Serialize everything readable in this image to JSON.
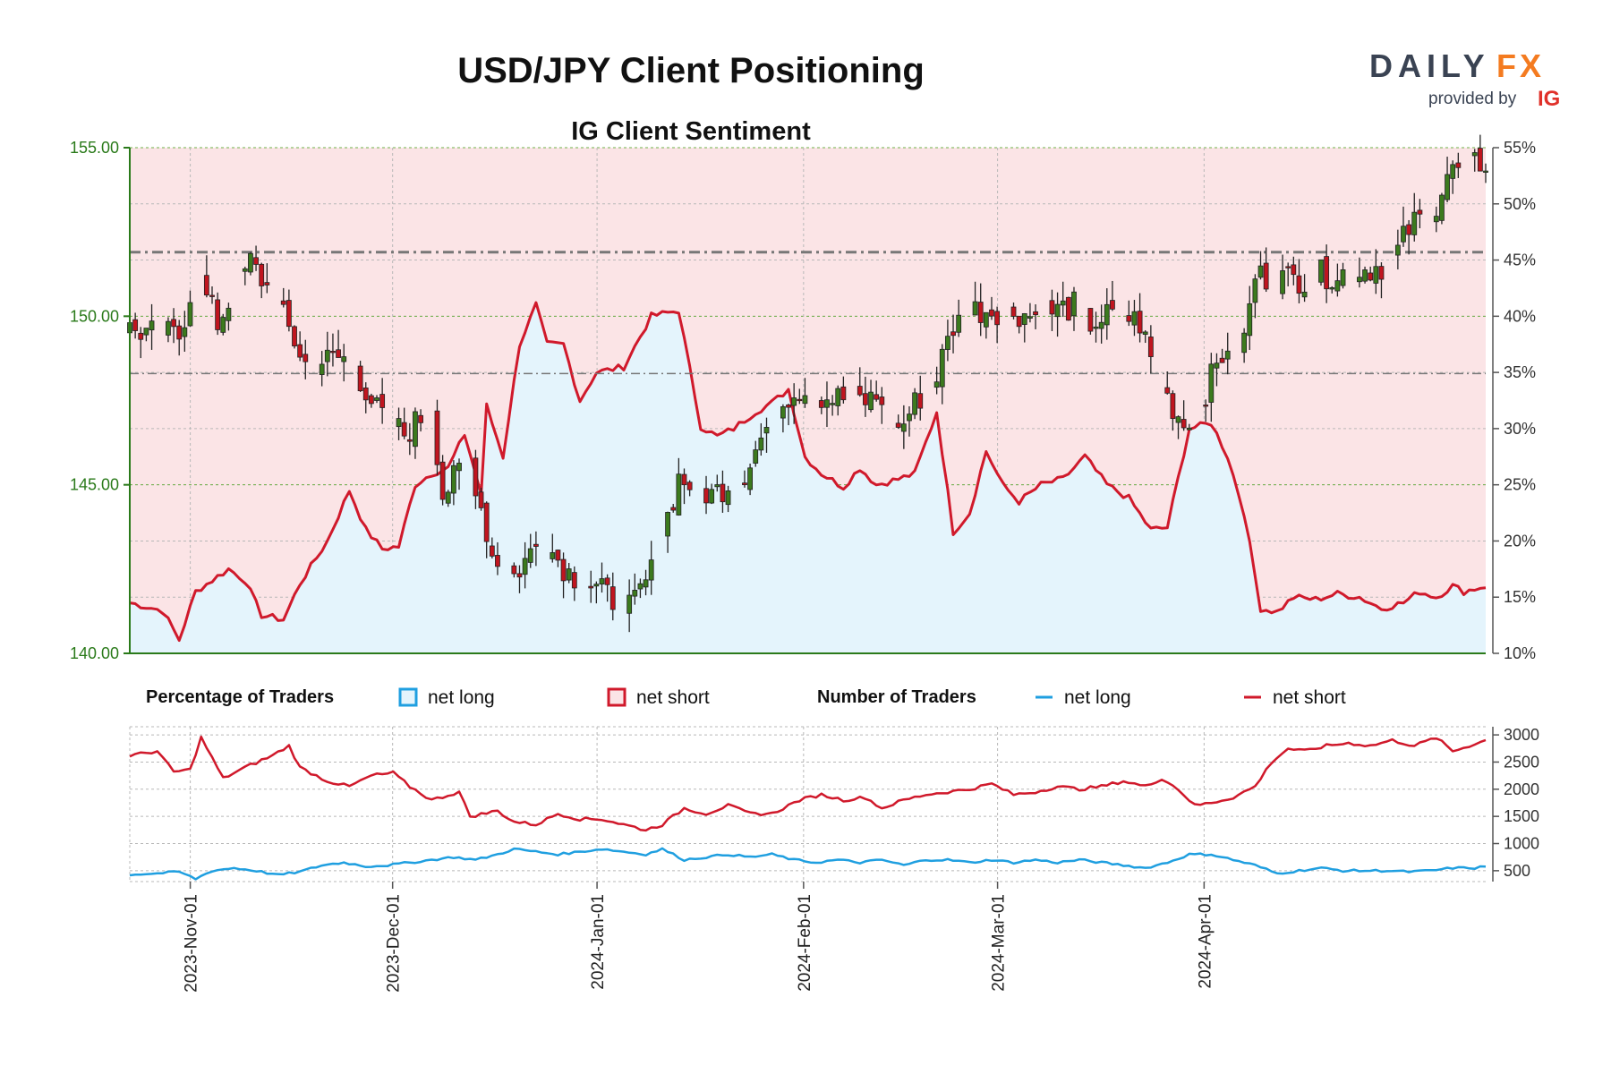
{
  "header": {
    "title": "USD/JPY Client Positioning",
    "subtitle": "IG Client Sentiment",
    "logo": {
      "text_main": "DAILY",
      "text_accent": "FX",
      "provided_by": "provided by",
      "brand": "IG"
    }
  },
  "legend": {
    "pct_heading": "Percentage of Traders",
    "pct_long": "net long",
    "pct_short": "net short",
    "num_heading": "Number of Traders",
    "num_long": "net long",
    "num_short": "net short"
  },
  "colors": {
    "long": "#1f9fe0",
    "short": "#d0192b",
    "long_fill": "#e4f4fc",
    "short_fill": "#fbe4e6",
    "candle_up": "#3c7a1e",
    "candle_down": "#c0151f",
    "price_axis": "#2a7a1a",
    "resistance": "#777777"
  },
  "chart_data": [
    {
      "type": "candlestick",
      "name": "USD/JPY price",
      "left_axis": {
        "ylim": [
          140,
          155
        ],
        "ticks": [
          "140.00",
          "145.00",
          "150.00",
          "155.00"
        ]
      },
      "right_axis": {
        "ylim": [
          10,
          55
        ],
        "ticks": [
          "10%",
          "15%",
          "20%",
          "25%",
          "30%",
          "35%",
          "40%",
          "45%",
          "50%",
          "55%"
        ]
      },
      "x_ticks": [
        "2023-Nov-01",
        "2023-Dec-01",
        "2024-Jan-01",
        "2024-Feb-01",
        "2024-Mar-01",
        "2024-Apr-01"
      ],
      "horizontal_levels": [
        151.9,
        148.3
      ],
      "price_keypoints": [
        [
          0,
          149.6
        ],
        [
          9,
          149.4
        ],
        [
          12,
          151.3
        ],
        [
          16,
          149.8
        ],
        [
          22,
          151.6
        ],
        [
          26,
          150.6
        ],
        [
          32,
          148.6
        ],
        [
          40,
          148.8
        ],
        [
          45,
          147.2
        ],
        [
          50,
          146.5
        ],
        [
          55,
          147.3
        ],
        [
          57,
          144.7
        ],
        [
          62,
          145.8
        ],
        [
          66,
          142.9
        ],
        [
          70,
          142.3
        ],
        [
          75,
          143.4
        ],
        [
          80,
          142.4
        ],
        [
          84,
          142.0
        ],
        [
          88,
          141.6
        ],
        [
          90,
          141.0
        ],
        [
          95,
          142.4
        ],
        [
          100,
          145.2
        ],
        [
          106,
          144.7
        ],
        [
          112,
          145.4
        ],
        [
          117,
          147.0
        ],
        [
          121,
          147.9
        ],
        [
          127,
          147.6
        ],
        [
          134,
          147.5
        ],
        [
          137,
          147.6
        ],
        [
          140,
          146.6
        ],
        [
          143,
          147.4
        ],
        [
          147,
          148.3
        ],
        [
          150,
          149.7
        ],
        [
          154,
          150.2
        ],
        [
          160,
          150.2
        ],
        [
          165,
          150.0
        ],
        [
          172,
          150.3
        ],
        [
          175,
          149.8
        ],
        [
          180,
          150.1
        ],
        [
          184,
          149.8
        ],
        [
          187,
          148.2
        ],
        [
          189,
          147.6
        ],
        [
          192,
          146.8
        ],
        [
          196,
          147.8
        ],
        [
          200,
          149.2
        ],
        [
          203,
          149.3
        ],
        [
          205,
          151.2
        ],
        [
          212,
          151.1
        ],
        [
          220,
          151.3
        ],
        [
          225,
          151.4
        ],
        [
          230,
          151.6
        ],
        [
          233,
          152.6
        ],
        [
          238,
          153.3
        ],
        [
          240,
          154.2
        ],
        [
          243,
          154.4
        ],
        [
          247,
          154.6
        ]
      ],
      "pct_long_keypoints": [
        [
          0,
          14.5
        ],
        [
          6,
          13.8
        ],
        [
          9,
          11.2
        ],
        [
          12,
          15.5
        ],
        [
          15,
          16.5
        ],
        [
          18,
          17.5
        ],
        [
          21,
          16.5
        ],
        [
          24,
          13.4
        ],
        [
          28,
          13.0
        ],
        [
          31,
          16.2
        ],
        [
          36,
          20.0
        ],
        [
          40,
          24.5
        ],
        [
          43,
          21.0
        ],
        [
          46,
          19.3
        ],
        [
          49,
          19.5
        ],
        [
          52,
          25.0
        ],
        [
          55,
          26.0
        ],
        [
          58,
          26.5
        ],
        [
          61,
          29.5
        ],
        [
          64,
          24.2
        ],
        [
          65,
          32.0
        ],
        [
          68,
          27.5
        ],
        [
          71,
          37.5
        ],
        [
          74,
          41.0
        ],
        [
          76,
          37.5
        ],
        [
          79,
          37.5
        ],
        [
          82,
          32.5
        ],
        [
          85,
          35.0
        ],
        [
          90,
          35.5
        ],
        [
          95,
          40.0
        ],
        [
          100,
          40.5
        ],
        [
          104,
          30.2
        ],
        [
          107,
          29.3
        ],
        [
          110,
          30.0
        ],
        [
          114,
          31.5
        ],
        [
          117,
          32.3
        ],
        [
          120,
          33.5
        ],
        [
          123,
          27.5
        ],
        [
          126,
          26.0
        ],
        [
          130,
          24.8
        ],
        [
          133,
          26.5
        ],
        [
          136,
          25.0
        ],
        [
          140,
          25.5
        ],
        [
          143,
          26.0
        ],
        [
          147,
          31.5
        ],
        [
          150,
          20.8
        ],
        [
          153,
          22.5
        ],
        [
          156,
          28.0
        ],
        [
          159,
          25.0
        ],
        [
          162,
          23.5
        ],
        [
          166,
          25.0
        ],
        [
          170,
          25.5
        ],
        [
          174,
          27.5
        ],
        [
          178,
          25.0
        ],
        [
          182,
          23.8
        ],
        [
          186,
          21.0
        ],
        [
          189,
          21.2
        ],
        [
          193,
          30.0
        ],
        [
          197,
          30.5
        ],
        [
          200,
          27.5
        ],
        [
          203,
          22.5
        ],
        [
          206,
          14.0
        ],
        [
          209,
          13.7
        ],
        [
          212,
          15.0
        ],
        [
          216,
          14.8
        ],
        [
          220,
          15.3
        ],
        [
          224,
          15.0
        ],
        [
          228,
          14.0
        ],
        [
          232,
          14.5
        ],
        [
          235,
          15.5
        ],
        [
          238,
          15.0
        ],
        [
          241,
          16.0
        ],
        [
          243,
          15.5
        ],
        [
          247,
          16.0
        ]
      ],
      "resistance_level": 151.9,
      "mid_level": 148.3
    },
    {
      "type": "line",
      "name": "Number of Traders",
      "y_axis": {
        "ylim": [
          300,
          3150
        ],
        "ticks": [
          "500",
          "1000",
          "1500",
          "2000",
          "2500",
          "3000"
        ]
      },
      "short_keypoints": [
        [
          0,
          2620
        ],
        [
          5,
          2700
        ],
        [
          8,
          2320
        ],
        [
          11,
          2360
        ],
        [
          13,
          2950
        ],
        [
          17,
          2200
        ],
        [
          21,
          2400
        ],
        [
          26,
          2620
        ],
        [
          29,
          2800
        ],
        [
          31,
          2400
        ],
        [
          36,
          2150
        ],
        [
          40,
          2050
        ],
        [
          44,
          2250
        ],
        [
          48,
          2300
        ],
        [
          51,
          2050
        ],
        [
          55,
          1800
        ],
        [
          60,
          1950
        ],
        [
          62,
          1500
        ],
        [
          67,
          1600
        ],
        [
          70,
          1400
        ],
        [
          74,
          1350
        ],
        [
          78,
          1550
        ],
        [
          82,
          1450
        ],
        [
          86,
          1450
        ],
        [
          90,
          1350
        ],
        [
          94,
          1250
        ],
        [
          97,
          1350
        ],
        [
          101,
          1650
        ],
        [
          105,
          1550
        ],
        [
          109,
          1700
        ],
        [
          113,
          1550
        ],
        [
          117,
          1550
        ],
        [
          122,
          1800
        ],
        [
          126,
          1900
        ],
        [
          130,
          1800
        ],
        [
          134,
          1850
        ],
        [
          137,
          1650
        ],
        [
          141,
          1800
        ],
        [
          145,
          1900
        ],
        [
          149,
          1950
        ],
        [
          153,
          2000
        ],
        [
          157,
          2100
        ],
        [
          161,
          1900
        ],
        [
          165,
          1950
        ],
        [
          169,
          2050
        ],
        [
          173,
          2000
        ],
        [
          177,
          2050
        ],
        [
          181,
          2150
        ],
        [
          185,
          2050
        ],
        [
          188,
          2200
        ],
        [
          191,
          2000
        ],
        [
          194,
          1700
        ],
        [
          197,
          1750
        ],
        [
          201,
          1850
        ],
        [
          205,
          2050
        ],
        [
          208,
          2500
        ],
        [
          211,
          2750
        ],
        [
          214,
          2700
        ],
        [
          218,
          2800
        ],
        [
          222,
          2850
        ],
        [
          226,
          2800
        ],
        [
          230,
          2900
        ],
        [
          234,
          2800
        ],
        [
          238,
          2950
        ],
        [
          241,
          2700
        ],
        [
          244,
          2800
        ],
        [
          247,
          2900
        ]
      ],
      "long_keypoints": [
        [
          0,
          430
        ],
        [
          5,
          450
        ],
        [
          9,
          480
        ],
        [
          12,
          350
        ],
        [
          15,
          500
        ],
        [
          19,
          550
        ],
        [
          23,
          500
        ],
        [
          27,
          420
        ],
        [
          31,
          480
        ],
        [
          35,
          600
        ],
        [
          39,
          650
        ],
        [
          43,
          580
        ],
        [
          47,
          600
        ],
        [
          51,
          650
        ],
        [
          55,
          700
        ],
        [
          59,
          750
        ],
        [
          63,
          700
        ],
        [
          67,
          800
        ],
        [
          70,
          900
        ],
        [
          74,
          850
        ],
        [
          78,
          800
        ],
        [
          82,
          850
        ],
        [
          86,
          900
        ],
        [
          90,
          850
        ],
        [
          94,
          800
        ],
        [
          97,
          900
        ],
        [
          101,
          700
        ],
        [
          105,
          750
        ],
        [
          109,
          800
        ],
        [
          113,
          750
        ],
        [
          117,
          800
        ],
        [
          121,
          700
        ],
        [
          125,
          650
        ],
        [
          129,
          700
        ],
        [
          133,
          650
        ],
        [
          137,
          700
        ],
        [
          141,
          600
        ],
        [
          145,
          700
        ],
        [
          149,
          700
        ],
        [
          153,
          650
        ],
        [
          157,
          700
        ],
        [
          161,
          650
        ],
        [
          165,
          700
        ],
        [
          169,
          650
        ],
        [
          173,
          700
        ],
        [
          177,
          650
        ],
        [
          181,
          600
        ],
        [
          185,
          550
        ],
        [
          189,
          650
        ],
        [
          193,
          800
        ],
        [
          197,
          800
        ],
        [
          201,
          700
        ],
        [
          205,
          600
        ],
        [
          209,
          450
        ],
        [
          213,
          500
        ],
        [
          217,
          550
        ],
        [
          221,
          500
        ],
        [
          225,
          500
        ],
        [
          229,
          500
        ],
        [
          233,
          480
        ],
        [
          237,
          500
        ],
        [
          241,
          550
        ],
        [
          245,
          550
        ],
        [
          247,
          580
        ]
      ]
    }
  ]
}
